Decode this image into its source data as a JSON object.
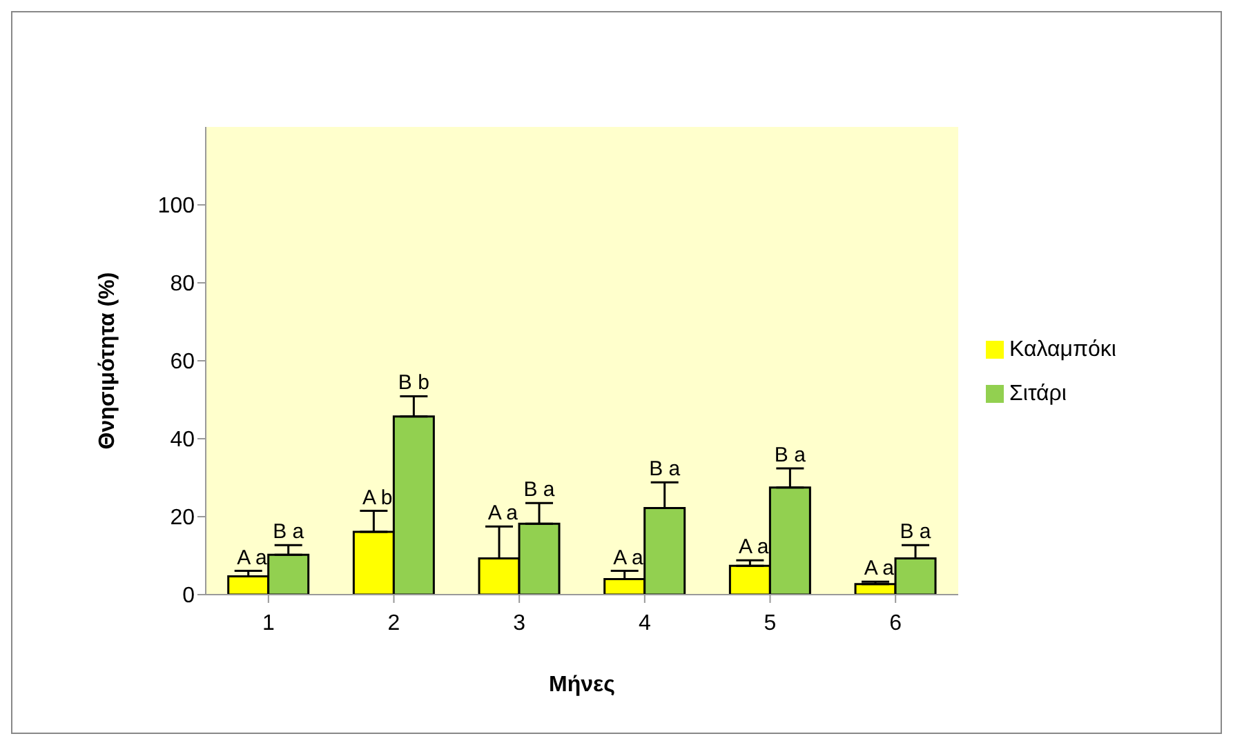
{
  "chart_data": {
    "type": "bar",
    "xlabel": "Μήνες",
    "ylabel": "Θνησιμότητα (%)",
    "categories": [
      "1",
      "2",
      "3",
      "4",
      "5",
      "6"
    ],
    "series": [
      {
        "name": "Καλαμπόκι",
        "color": "#ffff00",
        "values": [
          4.7,
          16.1,
          9.3,
          4.0,
          7.4,
          2.7
        ],
        "errors": [
          [
            4.7,
            6.1
          ],
          [
            16.1,
            21.5
          ],
          [
            9.3,
            17.5
          ],
          [
            4.0,
            6.1
          ],
          [
            7.4,
            8.8
          ],
          [
            2.7,
            3.3
          ]
        ],
        "value_labels": [
          "A a",
          "A b",
          "A a",
          "A a",
          "A a",
          "A a"
        ]
      },
      {
        "name": "Σιτάρι",
        "color": "#92d050",
        "values": [
          10.2,
          45.7,
          18.2,
          22.2,
          27.5,
          9.3
        ],
        "errors": [
          [
            10.2,
            12.7
          ],
          [
            45.7,
            50.9
          ],
          [
            18.2,
            23.5
          ],
          [
            22.2,
            28.8
          ],
          [
            27.5,
            32.4
          ],
          [
            9.3,
            12.7
          ]
        ],
        "value_labels": [
          "B a",
          "B b",
          "B a",
          "B a",
          "B a",
          "B a"
        ]
      }
    ],
    "ylim": [
      0,
      120
    ],
    "yticks": [
      0,
      20,
      40,
      60,
      80,
      100
    ],
    "grid": false,
    "legend": "right"
  }
}
